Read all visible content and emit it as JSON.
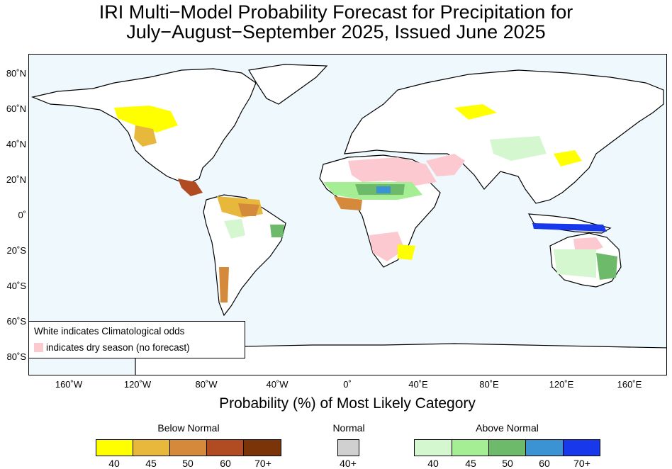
{
  "title": {
    "line1": "IRI Multi−Model Probability Forecast for Precipitation for",
    "line2": "July−August−September 2025, Issued June 2025"
  },
  "axes": {
    "lat_labels": [
      "80˚N",
      "60˚N",
      "40˚N",
      "20˚N",
      "0˚",
      "20˚S",
      "40˚S",
      "60˚S",
      "80˚S"
    ],
    "lon_labels": [
      "160˚W",
      "120˚W",
      "80˚W",
      "40˚W",
      "0˚",
      "40˚E",
      "80˚E",
      "120˚E",
      "160˚E"
    ]
  },
  "map_legend": {
    "line1": "White indicates Climatological odds",
    "line2": "indicates dry season (no forecast)"
  },
  "colorbar": {
    "title": "Probability (%) of Most Likely Category",
    "below_normal": {
      "label": "Below Normal",
      "colors": [
        "#ffff00",
        "#e8b83c",
        "#d48a3a",
        "#b04b22",
        "#7a3408"
      ],
      "ticks": [
        "40",
        "45",
        "50",
        "60",
        "70+"
      ]
    },
    "normal": {
      "label": "Normal",
      "colors": [
        "#d0d0d0"
      ],
      "ticks": [
        "40+"
      ]
    },
    "above_normal": {
      "label": "Above Normal",
      "colors": [
        "#d4f7d0",
        "#a6ee94",
        "#6cba6a",
        "#3c93d4",
        "#1838ec"
      ],
      "ticks": [
        "40",
        "45",
        "50",
        "60",
        "70+"
      ]
    }
  }
}
